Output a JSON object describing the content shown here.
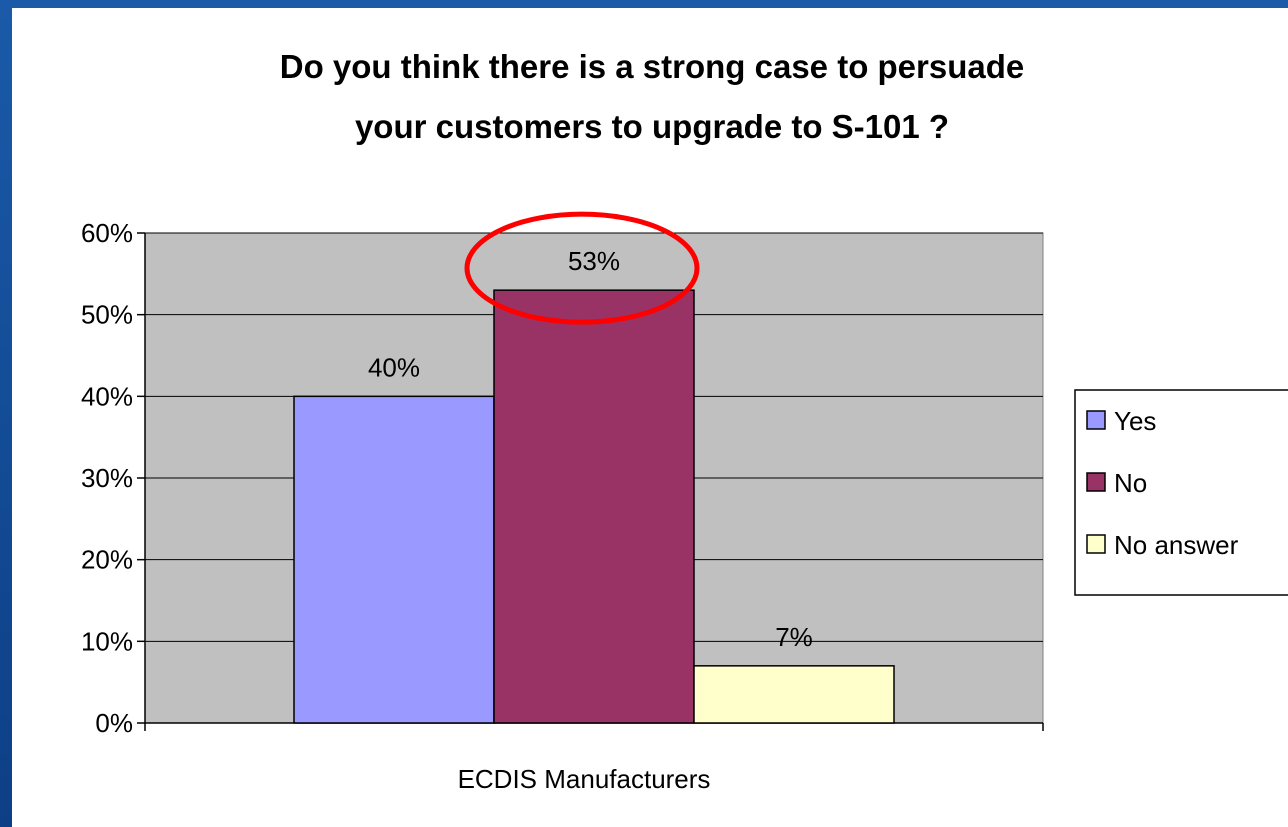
{
  "chart_data": {
    "type": "bar",
    "title_lines": [
      "Do you think there is a strong case to persuade",
      "your customers to upgrade to S-101 ?"
    ],
    "categories": [
      "ECDIS Manufacturers"
    ],
    "series": [
      {
        "name": "Yes",
        "values": [
          40
        ],
        "color": "#9999ff",
        "label": "40%"
      },
      {
        "name": "No",
        "values": [
          53
        ],
        "color": "#993366",
        "label": "53%"
      },
      {
        "name": "No answer",
        "values": [
          7
        ],
        "color": "#ffffcc",
        "label": "7%"
      }
    ],
    "ylim": [
      0,
      60
    ],
    "yticks": [
      "0%",
      "10%",
      "20%",
      "30%",
      "40%",
      "50%",
      "60%"
    ],
    "ytick_values": [
      0,
      10,
      20,
      30,
      40,
      50,
      60
    ],
    "grid": true,
    "plot_background": "#c0c0c0",
    "legend_position": "right",
    "highlight": {
      "series": "No",
      "shape": "ellipse",
      "color": "#ff0000"
    }
  }
}
